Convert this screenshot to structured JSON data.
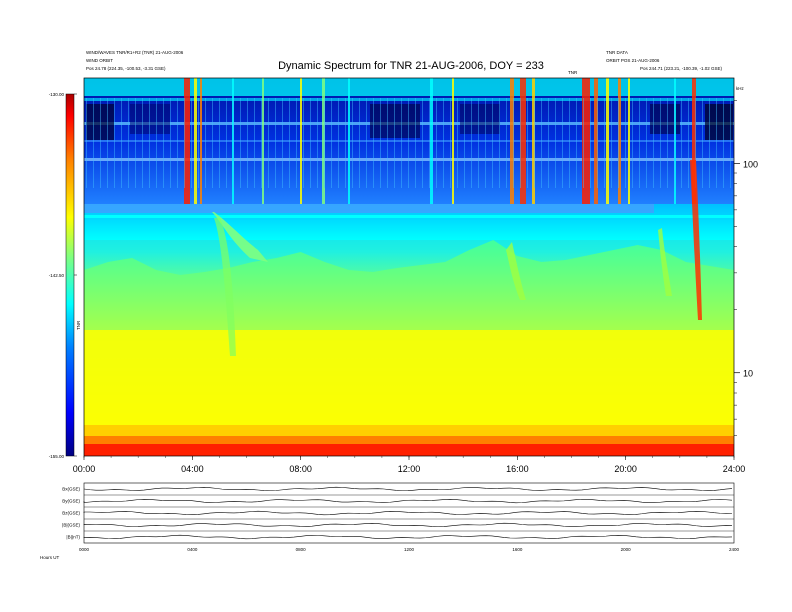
{
  "header": {
    "left_line1": "WIND/WAVES TNR/R1+R2 (TNR) 21-AUG-2006",
    "left_line2": "WIND ORBIT",
    "left_line3": "Pos 24.78 (224.35, -100.53, -3.31 GSE)",
    "right_line1": "TNR DATA",
    "right_line2": "ORBIT POS 21-AUG-2006",
    "right_line3": "Pos 244.71 (223.21, -100.39, -1.02 GSE)",
    "mid_small": "TNR",
    "unit_label": "kHz"
  },
  "colors": {
    "bar_gradient": [
      "#0000aa",
      "#0000ff",
      "#0080ff",
      "#00ffff",
      "#80ff80",
      "#ffff00",
      "#ff8000",
      "#ff0000",
      "#aa0000"
    ]
  },
  "chart_data": [
    {
      "type": "heatmap",
      "title": "Dynamic Spectrum for TNR 21-AUG-2006, DOY = 233",
      "xlabel": "",
      "ylabel": "",
      "x_ticks": [
        "00:00",
        "04:00",
        "08:00",
        "12:00",
        "16:00",
        "20:00",
        "24:00"
      ],
      "x_range_hours": [
        0,
        24
      ],
      "y_scale": "log",
      "y_range_khz": [
        4,
        256
      ],
      "y_ticks": [
        "100",
        "10"
      ],
      "y_tick_values": [
        100,
        10
      ],
      "colorbar_ticks": [
        "-130.00",
        "-142.50",
        "-155.00"
      ],
      "colorbar_range": [
        -155,
        -130
      ],
      "colorbar_label": "TNR",
      "grid": false
    },
    {
      "type": "line",
      "title": "",
      "panel_labels": [
        "Bx(GSE)",
        "By(GSE)",
        "Bz(GSE)",
        "|B|(GSE)",
        "|B|(nT)"
      ],
      "x_ticks": [
        "0000",
        "0400",
        "0800",
        "1200",
        "1600",
        "2000",
        "2400"
      ],
      "bottom_left": "Hours  UT"
    }
  ]
}
